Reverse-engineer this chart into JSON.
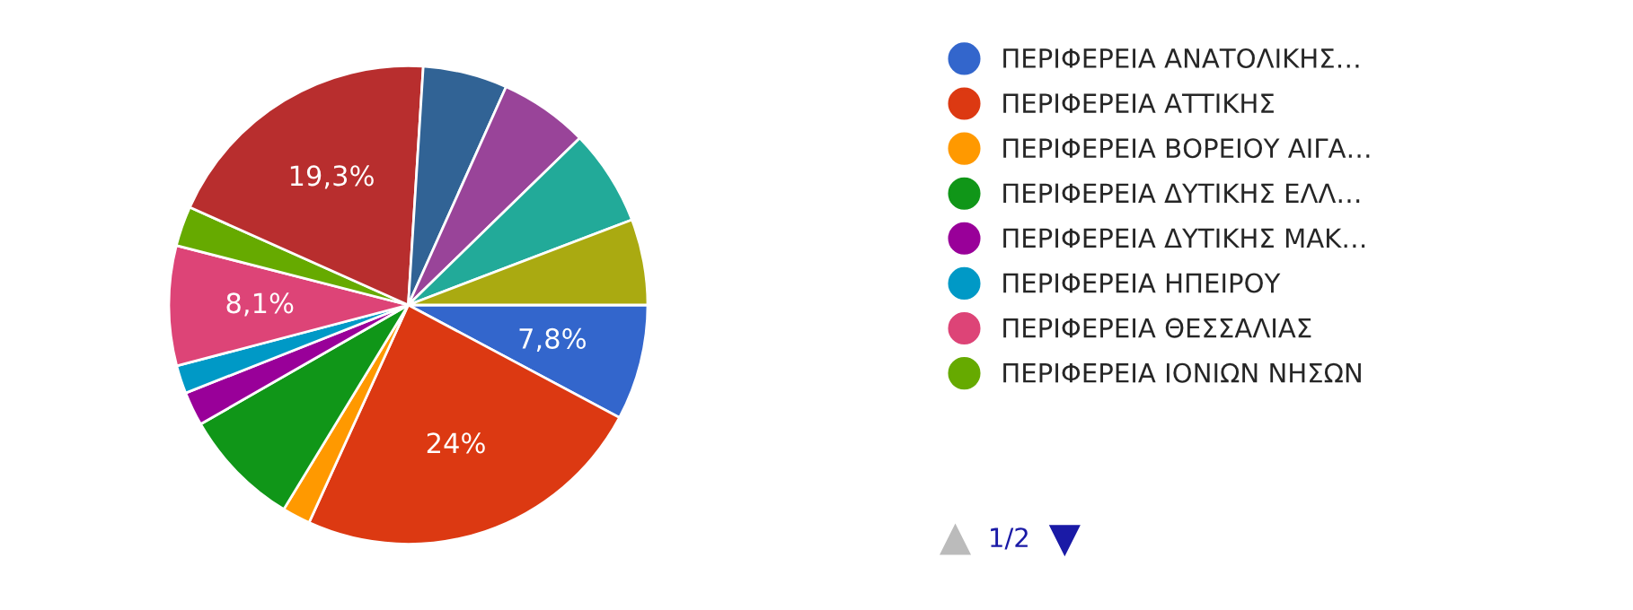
{
  "chart_data": {
    "type": "pie",
    "categories": [
      "ΠΕΡΙΦΕΡΕΙΑ ΑΝΑΤΟΛΙΚΗΣ…",
      "ΠΕΡΙΦΕΡΕΙΑ ΑΤΤΙΚΗΣ",
      "ΠΕΡΙΦΕΡΕΙΑ ΒΟΡΕΙΟΥ ΑΙΓΑ…",
      "ΠΕΡΙΦΕΡΕΙΑ ΔΥΤΙΚΗΣ ΕΛΛ…",
      "ΠΕΡΙΦΕΡΕΙΑ ΔΥΤΙΚΗΣ ΜΑΚ…",
      "ΠΕΡΙΦΕΡΕΙΑ ΗΠΕΙΡΟΥ",
      "ΠΕΡΙΦΕΡΕΙΑ ΘΕΣΣΑΛΙΑΣ",
      "ΠΕΡΙΦΕΡΕΙΑ ΙΟΝΙΩΝ ΝΗΣΩΝ",
      null,
      null,
      null,
      null,
      null
    ],
    "values": [
      7.8,
      24,
      1.9,
      8,
      2.3,
      1.9,
      8.1,
      2.7,
      19.3,
      5.7,
      6,
      6.5,
      5.8
    ],
    "value_labels": [
      "7,8%",
      "24%",
      null,
      null,
      null,
      null,
      "8,1%",
      null,
      "19,3%",
      null,
      null,
      null,
      null
    ],
    "colors": [
      "#3366cc",
      "#dc3912",
      "#ff9900",
      "#109618",
      "#990099",
      "#0099c6",
      "#dd4477",
      "#66aa00",
      "#b82e2e",
      "#316395",
      "#994499",
      "#22aa99",
      "#aaaa11"
    ],
    "legend": "right",
    "annotations": [
      "1/2"
    ]
  }
}
